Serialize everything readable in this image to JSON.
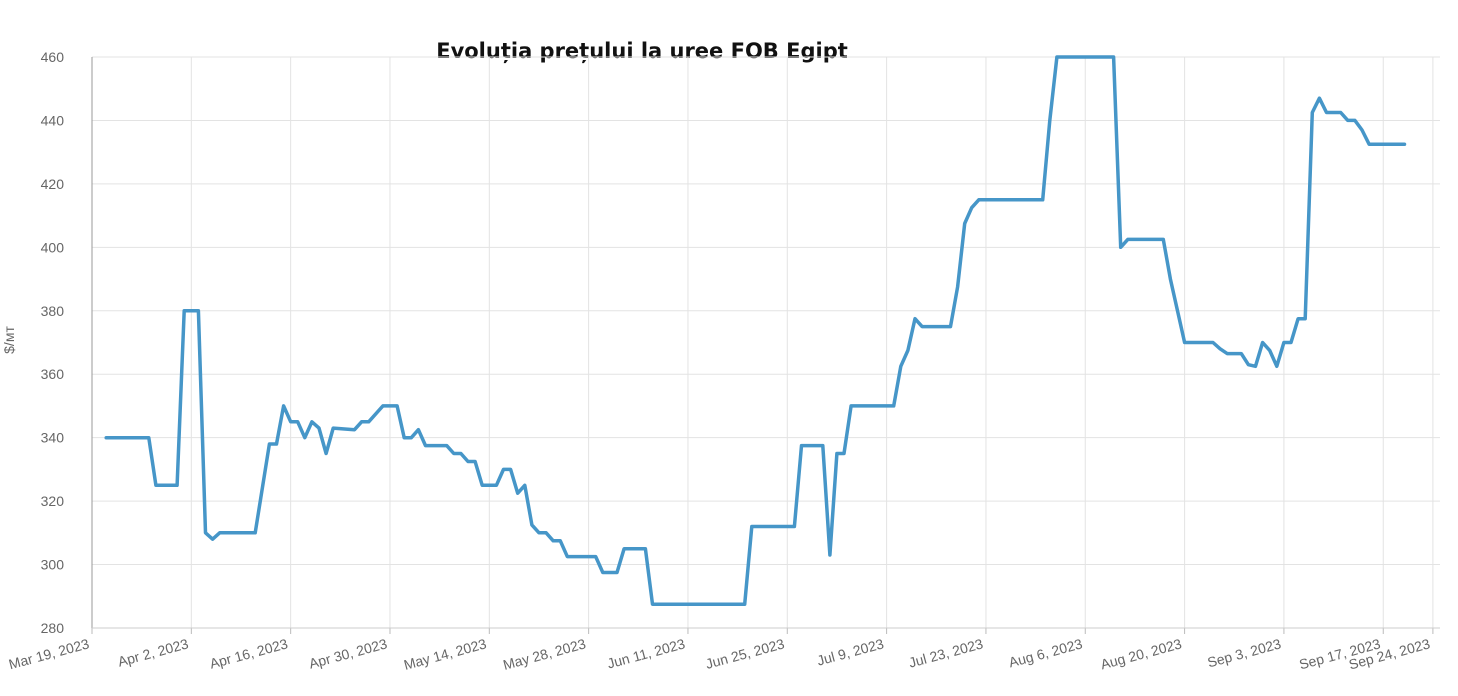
{
  "chart_data": {
    "type": "line",
    "title": "Evoluția prețului la uree FOB Egipt",
    "y_label": "$/мт",
    "grid": true,
    "xlim": [
      "2023-03-19",
      "2023-09-25"
    ],
    "ylim": [
      280,
      460
    ],
    "yticks": [
      280,
      300,
      320,
      340,
      360,
      380,
      400,
      420,
      440,
      460
    ],
    "xticks": [
      {
        "value": "2023-03-19",
        "label": "Mar 19, 2023"
      },
      {
        "value": "2023-04-02",
        "label": "Apr 2, 2023"
      },
      {
        "value": "2023-04-16",
        "label": "Apr 16, 2023"
      },
      {
        "value": "2023-04-30",
        "label": "Apr 30, 2023"
      },
      {
        "value": "2023-05-14",
        "label": "May 14, 2023"
      },
      {
        "value": "2023-05-28",
        "label": "May 28, 2023"
      },
      {
        "value": "2023-06-11",
        "label": "Jun 11, 2023"
      },
      {
        "value": "2023-06-25",
        "label": "Jun 25, 2023"
      },
      {
        "value": "2023-07-09",
        "label": "Jul 9, 2023"
      },
      {
        "value": "2023-07-23",
        "label": "Jul 23, 2023"
      },
      {
        "value": "2023-08-06",
        "label": "Aug 6, 2023"
      },
      {
        "value": "2023-08-20",
        "label": "Aug 20, 2023"
      },
      {
        "value": "2023-09-03",
        "label": "Sep 3, 2023"
      },
      {
        "value": "2023-09-17",
        "label": "Sep 17, 2023"
      },
      {
        "value": "2023-09-24",
        "label": "Sep 24, 2023"
      }
    ],
    "x": [
      "2023-03-21",
      "2023-03-27",
      "2023-03-28",
      "2023-03-31",
      "2023-04-01",
      "2023-04-03",
      "2023-04-04",
      "2023-04-05",
      "2023-04-06",
      "2023-04-11",
      "2023-04-13",
      "2023-04-14",
      "2023-04-15",
      "2023-04-16",
      "2023-04-17",
      "2023-04-18",
      "2023-04-19",
      "2023-04-20",
      "2023-04-21",
      "2023-04-22",
      "2023-04-25",
      "2023-04-26",
      "2023-04-27",
      "2023-04-29",
      "2023-05-01",
      "2023-05-02",
      "2023-05-03",
      "2023-05-04",
      "2023-05-05",
      "2023-05-08",
      "2023-05-09",
      "2023-05-10",
      "2023-05-11",
      "2023-05-12",
      "2023-05-13",
      "2023-05-15",
      "2023-05-16",
      "2023-05-17",
      "2023-05-18",
      "2023-05-19",
      "2023-05-20",
      "2023-05-21",
      "2023-05-22",
      "2023-05-23",
      "2023-05-24",
      "2023-05-25",
      "2023-05-29",
      "2023-05-30",
      "2023-06-01",
      "2023-06-02",
      "2023-06-05",
      "2023-06-06",
      "2023-06-19",
      "2023-06-20",
      "2023-06-26",
      "2023-06-27",
      "2023-06-30",
      "2023-07-01",
      "2023-07-02",
      "2023-07-03",
      "2023-07-04",
      "2023-07-10",
      "2023-07-11",
      "2023-07-12",
      "2023-07-13",
      "2023-07-14",
      "2023-07-18",
      "2023-07-19",
      "2023-07-20",
      "2023-07-21",
      "2023-07-22",
      "2023-07-31",
      "2023-08-01",
      "2023-08-02",
      "2023-08-10",
      "2023-08-11",
      "2023-08-12",
      "2023-08-17",
      "2023-08-18",
      "2023-08-19",
      "2023-08-20",
      "2023-08-24",
      "2023-08-25",
      "2023-08-26",
      "2023-08-28",
      "2023-08-29",
      "2023-08-30",
      "2023-08-31",
      "2023-09-01",
      "2023-09-02",
      "2023-09-03",
      "2023-09-04",
      "2023-09-05",
      "2023-09-06",
      "2023-09-07",
      "2023-09-08",
      "2023-09-09",
      "2023-09-11",
      "2023-09-12",
      "2023-09-13",
      "2023-09-14",
      "2023-09-15",
      "2023-09-20"
    ],
    "series": [
      {
        "name": "Uree FOB Egipt",
        "color": "#4696c8",
        "values": [
          340,
          340,
          325,
          325,
          380,
          380,
          310,
          308,
          310,
          310,
          338,
          338,
          350,
          345,
          345,
          340,
          345,
          343,
          335,
          343,
          342.5,
          345,
          345,
          350,
          350,
          340,
          340,
          342.5,
          337.5,
          337.5,
          335,
          335,
          332.5,
          332.5,
          325,
          325,
          330,
          330,
          322.5,
          325,
          312.5,
          310,
          310,
          307.5,
          307.5,
          302.5,
          302.5,
          297.5,
          297.5,
          305,
          305,
          287.5,
          287.5,
          312,
          312,
          337.5,
          337.5,
          303,
          335,
          335,
          350,
          350,
          362.5,
          367.5,
          377.5,
          375,
          375,
          387.5,
          407.5,
          412.5,
          415,
          415,
          440,
          460,
          460,
          400,
          402.5,
          402.5,
          390,
          380,
          370,
          370,
          368,
          366.5,
          366.5,
          363,
          362.5,
          370,
          367.5,
          362.5,
          370,
          370,
          377.5,
          377.5,
          442.5,
          447,
          442.5,
          442.5,
          440,
          440,
          437,
          432.5,
          432.5
        ]
      }
    ]
  }
}
